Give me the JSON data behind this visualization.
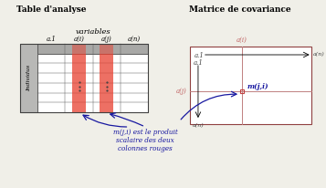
{
  "bg_color": "#f0efe8",
  "title_left": "Table d'analyse",
  "title_right": "Matrice de covariance",
  "annotation_text": "m(j,i) est le produit\nscalaire des deux\ncolonnes rouges",
  "label_variables": "variables",
  "label_individus": "Individus",
  "label_a1_col": "a.1",
  "label_aji_col": "a(i)",
  "label_ajj_col": "a(j)",
  "label_an_col": "a(n)",
  "label_mji": "m(j,i)",
  "table_gray": "#c0c0be",
  "header_gray": "#a8a8a6",
  "ind_gray": "#b8b8b6",
  "col_red": "#e84030",
  "col_red_alpha": 0.75,
  "matrix_border": "#904040",
  "matrix_line": "#c08080",
  "point_color": "#c04040",
  "arrow_blue": "#1818a0",
  "label_pink": "#c06060",
  "label_black": "#404040"
}
